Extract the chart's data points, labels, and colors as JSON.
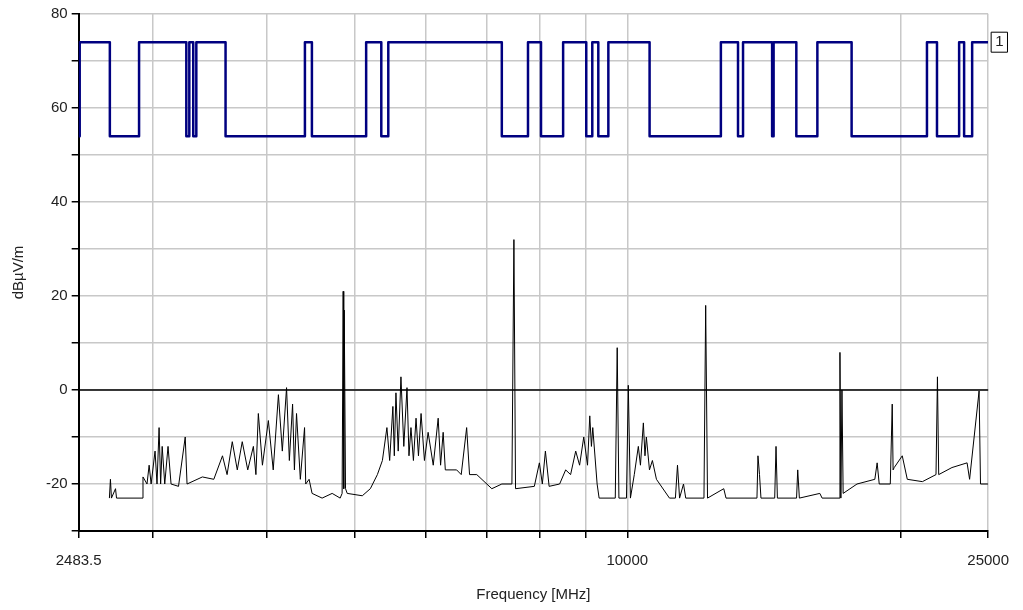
{
  "chart_data": {
    "type": "line",
    "xlabel": "Frequency [MHz]",
    "ylabel": "dBµV/m",
    "log": "x",
    "grid": true,
    "legend": false,
    "marker": "none",
    "xlim": [
      2483.5,
      25000
    ],
    "xticks": [
      2483.5,
      {
        "value": 3000,
        "label": null
      },
      {
        "value": 4000,
        "label": null
      },
      {
        "value": 5000,
        "label": null
      },
      {
        "value": 6000,
        "label": null
      },
      {
        "value": 7000,
        "label": null
      },
      {
        "value": 8000,
        "label": null
      },
      {
        "value": 9000,
        "label": null
      },
      10000,
      {
        "value": 20000,
        "label": null
      },
      25000
    ],
    "ylim": [
      -30,
      80
    ],
    "yticks": [
      {
        "value": -30,
        "label": null
      },
      -20,
      {
        "value": -10,
        "label": null
      },
      0,
      {
        "value": 10,
        "label": null
      },
      20,
      {
        "value": 30,
        "label": null
      },
      40,
      {
        "value": 50,
        "label": null
      },
      60,
      {
        "value": 70,
        "label": null
      },
      80
    ],
    "ref_lines": [
      {
        "axis": "y",
        "value": 0,
        "color": "#000000"
      }
    ],
    "annotations": [
      {
        "text": "1",
        "x": 25000,
        "y": 74
      }
    ],
    "series": [
      {
        "type": "step",
        "color": "#000080",
        "x": [
          2483.5,
          2490,
          2688,
          2895,
          3264,
          3289,
          3322,
          3348,
          3606,
          4411,
          4490,
          5153,
          5355,
          5451,
          7272,
          7772,
          8033,
          8497,
          9011,
          9150,
          9291,
          9531,
          10583,
          12683,
          13247,
          13417,
          14445,
          14500,
          15361,
          16204,
          17676,
          21403,
          21955,
          23224,
          23520,
          24005,
          25000
        ],
        "values": [
          54,
          74,
          54,
          74,
          54,
          74,
          54,
          74,
          54,
          74,
          54,
          74,
          54,
          74,
          54,
          74,
          54,
          74,
          54,
          74,
          54,
          74,
          54,
          74,
          54,
          74,
          54,
          74,
          54,
          74,
          54,
          74,
          54,
          74,
          54,
          74,
          74
        ]
      },
      {
        "type": "line",
        "color": "#000000",
        "x": [
          2685,
          2692,
          2699,
          2727,
          2734,
          2917,
          2924,
          2954,
          2970,
          2985,
          3015,
          3030,
          3046,
          3058,
          3070,
          3090,
          3116,
          3140,
          3200,
          3255,
          3270,
          3400,
          3500,
          3578,
          3620,
          3668,
          3715,
          3762,
          3815,
          3870,
          3895,
          3919,
          3960,
          4020,
          4070,
          4124,
          4165,
          4210,
          4240,
          4275,
          4295,
          4318,
          4360,
          4407,
          4420,
          4458,
          4492,
          4608,
          4727,
          4824,
          4848,
          4861,
          4868,
          4874,
          4890,
          4911,
          5103,
          5208,
          5302,
          5370,
          5432,
          5470,
          5515,
          5535,
          5558,
          5590,
          5629,
          5670,
          5716,
          5745,
          5774,
          5810,
          5849,
          5885,
          5924,
          5975,
          6031,
          6110,
          6187,
          6225,
          6266,
          6300,
          6484,
          6560,
          6651,
          6700,
          6824,
          7090,
          7273,
          7461,
          7499,
          7530,
          7898,
          8000,
          8060,
          8123,
          8200,
          8422,
          8552,
          8660,
          8773,
          8860,
          8954,
          9040,
          9092,
          9130,
          9161,
          9263,
          9310,
          9700,
          9748,
          9790,
          9980,
          10026,
          10080,
          10180,
          10285,
          10340,
          10417,
          10460,
          10497,
          10580,
          10659,
          10769,
          11131,
          11300,
          11360,
          11420,
          11535,
          11600,
          12150,
          12203,
          12260,
          12776,
          12850,
          13900,
          13935,
          13990,
          14042,
          14540,
          14589,
          14640,
          15370,
          15416,
          15480,
          16306,
          16400,
          17120,
          17160,
          17200,
          17248,
          17300,
          17920,
          18750,
          18860,
          18960,
          19500,
          19596,
          19640,
          19696,
          20102,
          20360,
          21156,
          21900,
          21980,
          22050,
          22805,
          23698,
          23850,
          24432,
          24520,
          25000
        ],
        "values": [
          -23,
          -19,
          -23,
          -21,
          -23,
          -23,
          -18.5,
          -20,
          -16,
          -20,
          -13,
          -20,
          -8,
          -20,
          -12,
          -20,
          -12,
          -20,
          -20.5,
          -10,
          -20,
          -18.5,
          -19,
          -14,
          -18,
          -11,
          -17,
          -11,
          -17,
          -12,
          -18,
          -5,
          -16,
          -6.5,
          -17,
          -1,
          -13,
          0.5,
          -15,
          -3,
          -17,
          -5,
          -19,
          -8,
          -20,
          -19,
          -22,
          -23,
          -22,
          -23,
          -22,
          21,
          -21,
          17,
          -21,
          -22,
          -22.5,
          -21,
          -18,
          -15,
          -8,
          -15,
          -3.5,
          -14,
          -0.6,
          -13,
          2.8,
          -12,
          0.5,
          -14,
          -8,
          -15,
          -6,
          -14,
          -5,
          -15,
          -9,
          -16,
          -6,
          -16,
          -9,
          -17,
          -17,
          -18,
          -8,
          -18,
          -18,
          -21,
          -20,
          -20,
          32,
          -21,
          -20.5,
          -15.5,
          -20,
          -13,
          -20.5,
          -20,
          -17,
          -18,
          -13,
          -16,
          -10,
          -16,
          -5.5,
          -12,
          -8,
          -20,
          -23,
          -23,
          9,
          -23,
          -23,
          1,
          -23,
          -18,
          -12,
          -16,
          -7,
          -14,
          -10,
          -17,
          -15,
          -19,
          -23,
          -23,
          -16,
          -23,
          -20,
          -23,
          -23,
          18,
          -23,
          -21,
          -23,
          -23,
          -14,
          -18,
          -23,
          -23,
          -12,
          -23,
          -23,
          -17,
          -23,
          -22,
          -23,
          -23,
          8,
          -23,
          0,
          -22,
          -20,
          -19,
          -15.5,
          -20,
          -20,
          -3,
          -17,
          -16.5,
          -14,
          -19,
          -19.5,
          -18,
          2.8,
          -18,
          -16.5,
          -15.5,
          -19,
          -0.2,
          -20,
          -20
        ]
      }
    ]
  }
}
